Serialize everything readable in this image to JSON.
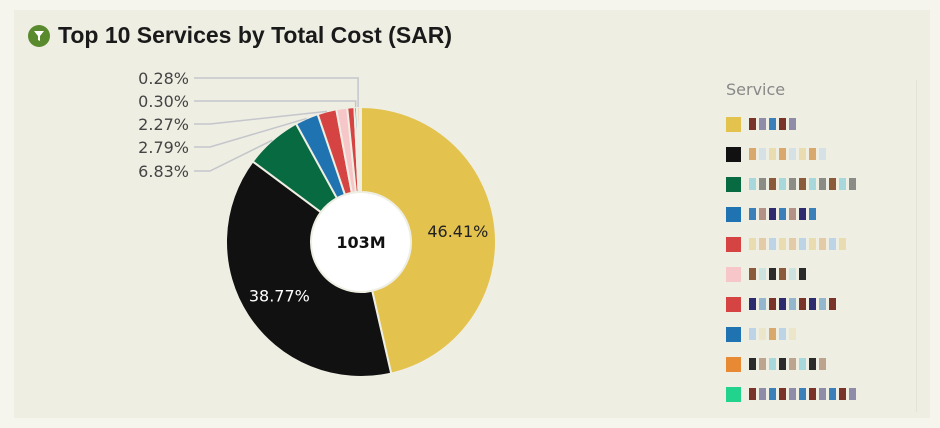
{
  "title": "Top 10 Services by Total Cost (SAR)",
  "title_icon": "filter-icon",
  "chart_data": {
    "type": "pie",
    "donut": true,
    "title": "Top 10 Services by Total Cost (SAR)",
    "center_label": "103M",
    "legend_title": "Service",
    "legend_position": "right",
    "slices": [
      {
        "color": "#e3c24e",
        "value": 46.41,
        "label": "46.41%"
      },
      {
        "color": "#111111",
        "value": 38.77,
        "label": "38.77%"
      },
      {
        "color": "#076a40",
        "value": 6.83,
        "label": "6.83%"
      },
      {
        "color": "#1f73b0",
        "value": 2.79,
        "label": "2.79%"
      },
      {
        "color": "#d54343",
        "value": 2.27,
        "label": "2.27%"
      },
      {
        "color": "#f6c6c8",
        "value": 1.3,
        "label": ""
      },
      {
        "color": "#d54343",
        "value": 0.85,
        "label": ""
      },
      {
        "color": "#1f73b0",
        "value": 0.3,
        "label": "0.30%"
      },
      {
        "color": "#e88a33",
        "value": 0.28,
        "label": "0.28%"
      },
      {
        "color": "#22d38d",
        "value": 0.2,
        "label": ""
      }
    ]
  }
}
